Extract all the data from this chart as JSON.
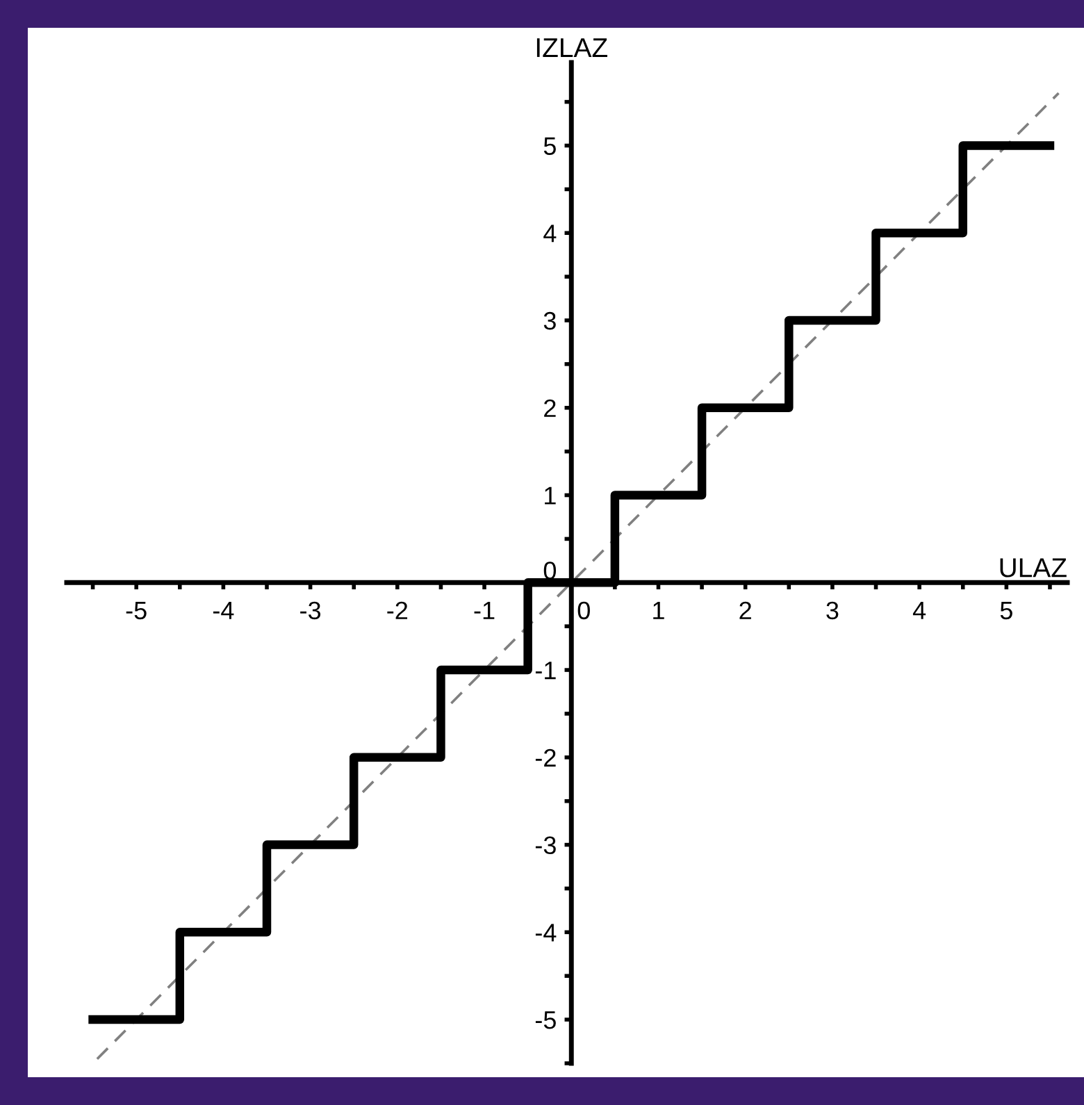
{
  "chart_data": {
    "type": "step",
    "xlabel": "ULAZ",
    "ylabel": "IZLAZ",
    "x": [
      -5.5,
      -4.5,
      -3.5,
      -2.5,
      -1.5,
      -0.5,
      0.5,
      1.5,
      2.5,
      3.5,
      4.5,
      5.5
    ],
    "series": [
      {
        "color": "#000000",
        "line_style": "solid",
        "values": [
          -5,
          -4,
          -3,
          -2,
          -1,
          0,
          1,
          2,
          3,
          4,
          5,
          5
        ]
      },
      {
        "type": "line",
        "color": "#808080",
        "line_style": "dashed",
        "x": [
          -5.45,
          5.6
        ],
        "values": [
          -5.45,
          5.6
        ]
      }
    ],
    "xlim": [
      -5.8,
      5.7
    ],
    "ylim": [
      -5.5,
      5.95
    ],
    "xticks": [
      -5,
      -4,
      -3,
      -2,
      -1,
      0,
      1,
      2,
      3,
      4,
      5,
      {
        "value": -5.5,
        "label": null
      },
      {
        "value": -4.5,
        "label": null
      },
      {
        "value": -3.5,
        "label": null
      },
      {
        "value": -2.5,
        "label": null
      },
      {
        "value": -1.5,
        "label": null
      },
      {
        "value": -0.5,
        "label": null
      },
      {
        "value": 0.5,
        "label": null
      },
      {
        "value": 1.5,
        "label": null
      },
      {
        "value": 2.5,
        "label": null
      },
      {
        "value": 3.5,
        "label": null
      },
      {
        "value": 4.5,
        "label": null
      },
      {
        "value": 5.5,
        "label": null
      }
    ],
    "yticks": [
      -5,
      -4,
      -3,
      -2,
      -1,
      0,
      1,
      2,
      3,
      4,
      5,
      {
        "value": -5.5,
        "label": null
      },
      {
        "value": -4.5,
        "label": null
      },
      {
        "value": -3.5,
        "label": null
      },
      {
        "value": -2.5,
        "label": null
      },
      {
        "value": -1.5,
        "label": null
      },
      {
        "value": -0.5,
        "label": null
      },
      {
        "value": 0.5,
        "label": null
      },
      {
        "value": 1.5,
        "label": null
      },
      {
        "value": 2.5,
        "label": null
      },
      {
        "value": 3.5,
        "label": null
      },
      {
        "value": 4.5,
        "label": null
      },
      {
        "value": 5.5,
        "label": null
      }
    ],
    "grid": false,
    "legend": false
  }
}
